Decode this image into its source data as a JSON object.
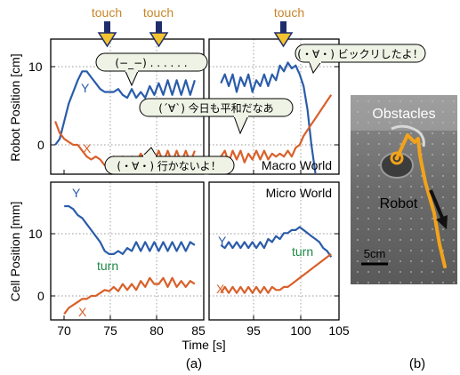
{
  "figure": {
    "touch_labels": [
      "touch",
      "touch",
      "touch"
    ],
    "top_ylabel": "Robot Position [cm]",
    "bottom_ylabel": "Cell Position [mm]",
    "xlabel": "Time [s]",
    "macro_label": "Macro World",
    "micro_label": "Micro World",
    "photo_obstacles": "Obstacles",
    "photo_robot": "Robot",
    "photo_scale": "5cm",
    "subfig_a": "(a)",
    "subfig_b": "(b)",
    "bubbles": [
      "(−_−) . . . . . .",
      "(・∀・) ビックリしたよ！",
      "(´∀`) 今日も平和だなあ",
      "(・∀・) 行かないよ！"
    ],
    "turn_labels": [
      "turn",
      "turn"
    ],
    "colors": {
      "Y": "#2a5caa",
      "X": "#d9602a",
      "touch": "#c8862a",
      "turn": "#1e8a46",
      "path": "#f2a31b",
      "bubble": "#eef3e6"
    }
  },
  "chart_data": [
    {
      "type": "line",
      "panel": "top-left",
      "ylabel": "Robot Position [cm]",
      "xlim": [
        68,
        85
      ],
      "ylim": [
        -8,
        15
      ],
      "yticks": [
        0,
        10
      ],
      "xticks": [
        70,
        75,
        80,
        85
      ],
      "series": [
        {
          "name": "Y",
          "x": [
            68.5,
            69,
            69.5,
            70,
            70.5,
            71,
            71.5,
            72,
            72.5,
            73,
            73.5,
            74,
            74.5,
            75,
            75.5,
            76,
            76.5,
            77,
            77.5,
            78,
            78.5,
            79,
            79.5,
            80,
            80.5,
            81,
            81.5,
            82,
            82.5,
            83,
            83.5,
            84
          ],
          "y": [
            -3,
            -2,
            1,
            4,
            6,
            8,
            9.5,
            9.5,
            8.5,
            7.5,
            6.5,
            6,
            6,
            6,
            6.5,
            5.5,
            5,
            6.5,
            5,
            6,
            5,
            7,
            5.5,
            7.5,
            5.5,
            8,
            5.5,
            8,
            5.5,
            8,
            5.5,
            8
          ]
        },
        {
          "name": "X",
          "x": [
            68.5,
            69,
            69.5,
            70,
            70.5,
            71,
            71.5,
            72,
            72.5,
            73,
            73.5,
            74,
            74.5,
            75,
            75.5,
            76,
            76.5,
            77,
            77.5,
            78,
            78.5,
            79,
            79.5,
            80,
            80.5,
            81,
            81.5,
            82,
            82.5,
            83,
            83.5,
            84
          ],
          "y": [
            1,
            -1,
            -2,
            -2.5,
            -3,
            -3,
            -4,
            -5,
            -5.5,
            -5,
            -5.5,
            -6.5,
            -6,
            -5,
            -6,
            -5,
            -6,
            -5,
            -6,
            -4.5,
            -6,
            -4,
            -6,
            -4,
            -6,
            -4,
            -6,
            -4,
            -6,
            -4,
            -6,
            -4
          ]
        }
      ]
    },
    {
      "type": "line",
      "panel": "top-right",
      "xlim": [
        88.5,
        105
      ],
      "ylim": [
        -8,
        15
      ],
      "series": [
        {
          "name": "Y",
          "x": [
            90,
            90.5,
            91,
            91.5,
            92,
            92.5,
            93,
            93.5,
            94,
            94.5,
            95,
            95.5,
            96,
            96.5,
            97,
            97.5,
            98,
            98.5,
            99,
            99.5,
            100,
            100.5,
            101,
            101.5,
            102
          ],
          "y": [
            7.5,
            9,
            7,
            9,
            6,
            8.5,
            7,
            9,
            6,
            8,
            7,
            9,
            7,
            9,
            8,
            10.5,
            9.5,
            11,
            10,
            10.5,
            9,
            7,
            3,
            -3,
            -8
          ]
        },
        {
          "name": "X",
          "x": [
            90,
            90.5,
            91,
            91.5,
            92,
            92.5,
            93,
            93.5,
            94,
            94.5,
            95,
            95.5,
            96,
            96.5,
            97,
            97.5,
            98,
            98.5,
            99,
            99.5,
            100,
            100.5,
            101,
            101.5,
            102,
            102.5,
            103,
            103.5,
            104
          ],
          "y": [
            -5,
            -4,
            -6,
            -4,
            -5.5,
            -4,
            -6,
            -4.5,
            -5.5,
            -4,
            -5.5,
            -4,
            -5.5,
            -4.5,
            -5,
            -4.5,
            -5,
            -4,
            -5,
            -3.5,
            -3,
            -1.5,
            -0.5,
            0.5,
            1.5,
            2.5,
            3.5,
            4.5,
            5.5
          ]
        }
      ]
    },
    {
      "type": "line",
      "panel": "bottom-left",
      "ylabel": "Cell Position [mm]",
      "xlim": [
        68,
        85
      ],
      "ylim": [
        -4,
        19
      ],
      "yticks": [
        0,
        10
      ],
      "xticks": [
        70,
        75,
        80,
        85
      ],
      "series": [
        {
          "name": "Y",
          "x": [
            69.5,
            70,
            70.5,
            71,
            71.5,
            72,
            72.5,
            73,
            73.5,
            74,
            74.5,
            75,
            75.5,
            76,
            76.5,
            77,
            77.5,
            78,
            78.5,
            79,
            79.5,
            80,
            80.5,
            81,
            81.5,
            82,
            82.5,
            83,
            83.5,
            84
          ],
          "y": [
            15,
            15,
            14.5,
            13.5,
            13,
            12,
            11,
            10,
            9,
            7.5,
            7,
            7,
            7.5,
            7,
            8,
            7.5,
            9,
            7.5,
            9,
            7.5,
            9,
            7.5,
            9,
            7.5,
            9,
            7.5,
            9,
            7.5,
            9,
            8.5
          ]
        },
        {
          "name": "X",
          "x": [
            69.5,
            70,
            70.5,
            71,
            71.5,
            72,
            72.5,
            73,
            73.5,
            74,
            74.5,
            75,
            75.5,
            76,
            76.5,
            77,
            77.5,
            78,
            78.5,
            79,
            79.5,
            80,
            80.5,
            81,
            81.5,
            82,
            82.5,
            83,
            83.5,
            84
          ],
          "y": [
            -3,
            -2,
            -1.5,
            -1,
            -0.5,
            -0.5,
            0,
            0,
            0.5,
            1,
            0.8,
            1.5,
            0.8,
            2,
            1,
            2,
            1,
            2.5,
            1.5,
            3,
            2,
            2,
            3,
            1.5,
            3,
            1.5,
            2.5,
            1.5,
            2.5,
            2
          ]
        }
      ]
    },
    {
      "type": "line",
      "panel": "bottom-right",
      "xlim": [
        88.5,
        105
      ],
      "ylim": [
        -4,
        19
      ],
      "xticks": [
        95,
        100,
        105
      ],
      "series": [
        {
          "name": "Y",
          "x": [
            90,
            90.5,
            91,
            91.5,
            92,
            92.5,
            93,
            93.5,
            94,
            94.5,
            95,
            95.5,
            96,
            96.5,
            97,
            97.5,
            98,
            98.5,
            99,
            99.5,
            100,
            100.5,
            101,
            101.5,
            102,
            102.5,
            103,
            103.5,
            104
          ],
          "y": [
            8.5,
            8,
            9,
            8,
            9,
            8,
            9,
            8,
            9,
            8,
            9,
            8,
            9.5,
            9,
            10,
            9.5,
            10.5,
            10.5,
            11,
            11,
            11.5,
            11,
            10.5,
            10,
            9.5,
            9,
            8,
            7.5,
            6.5
          ]
        },
        {
          "name": "X",
          "x": [
            90,
            90.5,
            91,
            91.5,
            92,
            92.5,
            93,
            93.5,
            94,
            94.5,
            95,
            95.5,
            96,
            96.5,
            97,
            97.5,
            98,
            98.5,
            99,
            99.5,
            100,
            100.5,
            101,
            101.5,
            102,
            102.5,
            103,
            103.5,
            104
          ],
          "y": [
            0.5,
            1.5,
            0.5,
            1.5,
            0.5,
            1.5,
            0.5,
            1.5,
            0.5,
            1.5,
            0.5,
            1.5,
            0.5,
            1.5,
            1,
            1,
            1.5,
            1.5,
            2,
            2.5,
            3,
            3.5,
            4,
            4.5,
            5,
            5.5,
            6,
            6.5,
            7
          ]
        }
      ]
    }
  ]
}
